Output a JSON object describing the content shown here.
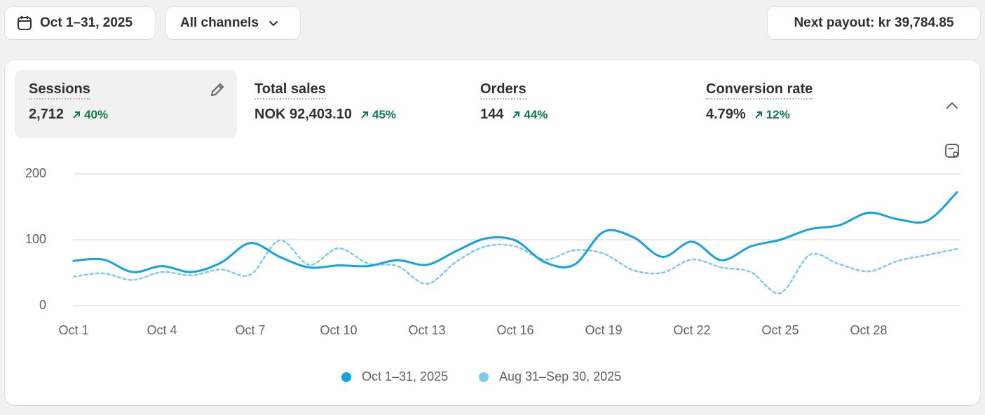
{
  "toolbar": {
    "date_range": "Oct 1–31, 2025",
    "channels": "All channels",
    "payout": "Next payout: kr 39,784.85"
  },
  "metrics": [
    {
      "label": "Sessions",
      "value": "2,712",
      "change": "40%"
    },
    {
      "label": "Total sales",
      "value": "NOK 92,403.10",
      "change": "45%"
    },
    {
      "label": "Orders",
      "value": "144",
      "change": "44%"
    },
    {
      "label": "Conversion rate",
      "value": "4.79%",
      "change": "12%"
    }
  ],
  "chart_data": {
    "type": "line",
    "categories": [
      "Oct 1",
      null,
      null,
      "Oct 4",
      null,
      null,
      "Oct 7",
      null,
      null,
      "Oct 10",
      null,
      null,
      "Oct 13",
      null,
      null,
      "Oct 16",
      null,
      null,
      "Oct 19",
      null,
      null,
      "Oct 22",
      null,
      null,
      "Oct 25",
      null,
      null,
      "Oct 28",
      null,
      null,
      null
    ],
    "series": [
      {
        "name": "Oct 1–31, 2025",
        "color": "#13a2e3",
        "dashed": false,
        "values": [
          68,
          70,
          51,
          60,
          51,
          65,
          95,
          74,
          58,
          61,
          60,
          69,
          62,
          83,
          102,
          99,
          66,
          62,
          112,
          104,
          74,
          97,
          69,
          90,
          100,
          116,
          122,
          141,
          131,
          129,
          172
        ]
      },
      {
        "name": "Aug 31–Sep 30, 2025",
        "color": "#7fcbeb",
        "dashed": true,
        "values": [
          44,
          49,
          39,
          51,
          46,
          55,
          47,
          99,
          62,
          87,
          64,
          60,
          33,
          67,
          90,
          90,
          70,
          84,
          79,
          54,
          50,
          70,
          58,
          51,
          19,
          77,
          63,
          52,
          68,
          77,
          86
        ]
      }
    ],
    "ylim": [
      0,
      200
    ],
    "yticks": [
      0,
      100,
      200
    ],
    "grid": true
  }
}
